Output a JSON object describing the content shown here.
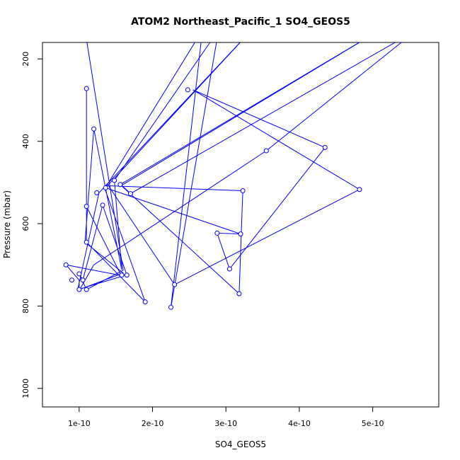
{
  "chart_data": {
    "type": "line",
    "title": "ATOM2 Northeast_Pacific_1 SO4_GEOS5",
    "xlabel": "SO4_GEOS5",
    "ylabel": "Pressure (mbar)",
    "xlim": [
      5e-11,
      5.9e-10
    ],
    "ylim": [
      1045,
      160
    ],
    "y_reversed": true,
    "x_ticks": [
      1e-10,
      2e-10,
      3e-10,
      4e-10,
      5e-10
    ],
    "x_tick_labels": [
      "1e-10",
      "2e-10",
      "3e-10",
      "4e-10",
      "5e-10"
    ],
    "y_ticks": [
      200,
      400,
      600,
      800,
      1000
    ],
    "y_tick_labels": [
      "200",
      "400",
      "600",
      "800",
      "1000"
    ],
    "series_color": "#0000ff",
    "grid": false,
    "legend": "none",
    "series": [
      {
        "points": [
          [
            1.08e-10,
            130
          ],
          [
            1.6e-10,
            713
          ],
          [
            1.1e-10,
            760
          ],
          [
            1e-10,
            722
          ],
          [
            1.05e-10,
            737
          ],
          [
            1.32e-10,
            555
          ],
          [
            1.65e-10,
            725
          ],
          [
            1.57e-10,
            725
          ],
          [
            1.1e-10,
            558
          ],
          [
            1.1e-10,
            272
          ],
          [
            1.1e-10,
            645
          ],
          [
            1.9e-10,
            790
          ],
          [
            1.35e-10,
            515
          ],
          [
            2.68e-10,
            130
          ],
          [
            2.25e-10,
            803
          ],
          [
            2.9e-10,
            130
          ],
          [
            1.48e-10,
            495
          ],
          [
            1.58e-10,
            712
          ],
          [
            1.2e-10,
            370
          ],
          [
            1.08e-10,
            645
          ],
          [
            1.6e-10,
            720
          ],
          [
            1e-10,
            760
          ],
          [
            1e-10,
            737
          ],
          [
            8.2e-11,
            700
          ],
          [
            1.6e-10,
            727
          ],
          [
            9.8e-11,
            760
          ],
          [
            1.27e-10,
            525
          ],
          [
            3.35e-10,
            130
          ],
          [
            1.36e-10,
            513
          ],
          [
            3.2e-10,
            625
          ],
          [
            2.88e-10,
            623
          ],
          [
            3.05e-10,
            710
          ],
          [
            4.35e-10,
            415
          ],
          [
            2.55e-10,
            275
          ],
          [
            4.82e-10,
            517
          ],
          [
            2.3e-10,
            748
          ],
          [
            1.4e-10,
            508
          ],
          [
            3.23e-10,
            520
          ],
          [
            3.18e-10,
            770
          ],
          [
            1.56e-10,
            505
          ],
          [
            5.1e-10,
            130
          ],
          [
            1.58e-10,
            507
          ],
          [
            1.7e-10,
            527
          ],
          [
            5.6e-10,
            130
          ],
          [
            3.55e-10,
            423
          ],
          [
            1.2e-10,
            700
          ],
          [
            1e-10,
            762
          ]
        ],
        "markers": [
          [
            1.1e-10,
            272
          ],
          [
            1.2e-10,
            370
          ],
          [
            2.48e-10,
            275
          ],
          [
            4.35e-10,
            415
          ],
          [
            3.55e-10,
            423
          ],
          [
            1.48e-10,
            495
          ],
          [
            1.56e-10,
            505
          ],
          [
            1.36e-10,
            513
          ],
          [
            4.82e-10,
            517
          ],
          [
            3.23e-10,
            520
          ],
          [
            1.24e-10,
            525
          ],
          [
            1.7e-10,
            527
          ],
          [
            1.32e-10,
            555
          ],
          [
            1.1e-10,
            558
          ],
          [
            2.88e-10,
            623
          ],
          [
            3.2e-10,
            625
          ],
          [
            1.1e-10,
            645
          ],
          [
            8.2e-11,
            700
          ],
          [
            3.05e-10,
            710
          ],
          [
            1e-10,
            722
          ],
          [
            1.58e-10,
            725
          ],
          [
            1.65e-10,
            725
          ],
          [
            9e-11,
            737
          ],
          [
            1.05e-10,
            737
          ],
          [
            2.3e-10,
            748
          ],
          [
            1e-10,
            760
          ],
          [
            1.1e-10,
            760
          ],
          [
            3.18e-10,
            770
          ],
          [
            1.9e-10,
            790
          ],
          [
            2.25e-10,
            803
          ]
        ]
      }
    ]
  }
}
